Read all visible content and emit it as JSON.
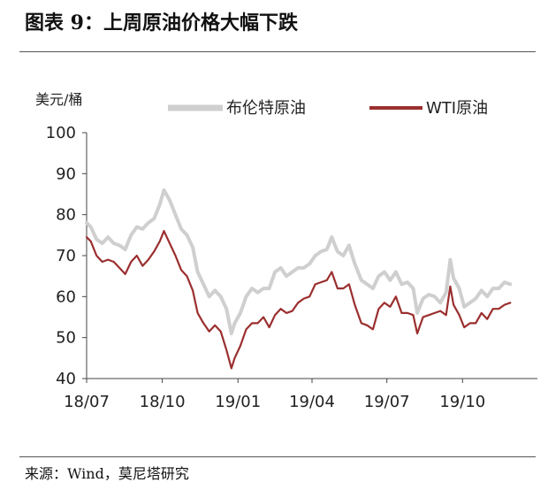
{
  "header": {
    "title": "图表 9：上周原油价格大幅下跌"
  },
  "footer": {
    "source": "来源：Wind，莫尼塔研究"
  },
  "colors": {
    "brent": "#cfcfcf",
    "wti": "#9b2f2f",
    "axis": "#444444"
  },
  "chart_data": {
    "type": "line",
    "title": "",
    "ylabel": "美元/桶",
    "xlabel": "",
    "ylim": [
      40,
      100
    ],
    "yticks": [
      40,
      50,
      60,
      70,
      80,
      90,
      100
    ],
    "xlim": [
      "2018-07-01",
      "2019-12-31"
    ],
    "xticks": [
      {
        "date": "2018-07-01",
        "label": "18/07"
      },
      {
        "date": "2018-10-01",
        "label": "18/10"
      },
      {
        "date": "2019-01-01",
        "label": "19/01"
      },
      {
        "date": "2019-04-01",
        "label": "19/04"
      },
      {
        "date": "2019-07-01",
        "label": "19/07"
      },
      {
        "date": "2019-10-01",
        "label": "19/10"
      }
    ],
    "legend_placement": "top",
    "grid": false,
    "series": [
      {
        "name": "布伦特原油",
        "points": [
          [
            "2018-07-01",
            78
          ],
          [
            "2018-07-06",
            77
          ],
          [
            "2018-07-13",
            74
          ],
          [
            "2018-07-20",
            73
          ],
          [
            "2018-07-27",
            74.5
          ],
          [
            "2018-08-03",
            73
          ],
          [
            "2018-08-10",
            72.5
          ],
          [
            "2018-08-17",
            71.5
          ],
          [
            "2018-08-24",
            75
          ],
          [
            "2018-08-31",
            77
          ],
          [
            "2018-09-07",
            76.5
          ],
          [
            "2018-09-14",
            78
          ],
          [
            "2018-09-21",
            79
          ],
          [
            "2018-09-28",
            82.5
          ],
          [
            "2018-10-03",
            86
          ],
          [
            "2018-10-10",
            83.5
          ],
          [
            "2018-10-17",
            80
          ],
          [
            "2018-10-24",
            76.5
          ],
          [
            "2018-10-31",
            75
          ],
          [
            "2018-11-07",
            72
          ],
          [
            "2018-11-13",
            66
          ],
          [
            "2018-11-20",
            63
          ],
          [
            "2018-11-27",
            60
          ],
          [
            "2018-12-04",
            61.5
          ],
          [
            "2018-12-11",
            60
          ],
          [
            "2018-12-18",
            57
          ],
          [
            "2018-12-24",
            51
          ],
          [
            "2018-12-28",
            53.5
          ],
          [
            "2019-01-04",
            56
          ],
          [
            "2019-01-11",
            60
          ],
          [
            "2019-01-18",
            62
          ],
          [
            "2019-01-25",
            61
          ],
          [
            "2019-02-01",
            62
          ],
          [
            "2019-02-08",
            62
          ],
          [
            "2019-02-15",
            66
          ],
          [
            "2019-02-22",
            67
          ],
          [
            "2019-03-01",
            65
          ],
          [
            "2019-03-08",
            66
          ],
          [
            "2019-03-15",
            67
          ],
          [
            "2019-03-22",
            67
          ],
          [
            "2019-03-29",
            68
          ],
          [
            "2019-04-05",
            70
          ],
          [
            "2019-04-12",
            71
          ],
          [
            "2019-04-19",
            71.5
          ],
          [
            "2019-04-25",
            74.5
          ],
          [
            "2019-05-02",
            71
          ],
          [
            "2019-05-09",
            70
          ],
          [
            "2019-05-16",
            72.5
          ],
          [
            "2019-05-23",
            68
          ],
          [
            "2019-05-31",
            64
          ],
          [
            "2019-06-07",
            63
          ],
          [
            "2019-06-14",
            62
          ],
          [
            "2019-06-21",
            65
          ],
          [
            "2019-06-28",
            66
          ],
          [
            "2019-07-05",
            64
          ],
          [
            "2019-07-12",
            66
          ],
          [
            "2019-07-19",
            63
          ],
          [
            "2019-07-26",
            63.5
          ],
          [
            "2019-08-02",
            62
          ],
          [
            "2019-08-07",
            56
          ],
          [
            "2019-08-14",
            59.5
          ],
          [
            "2019-08-21",
            60.5
          ],
          [
            "2019-08-28",
            60
          ],
          [
            "2019-09-04",
            58.5
          ],
          [
            "2019-09-11",
            61
          ],
          [
            "2019-09-16",
            69
          ],
          [
            "2019-09-20",
            64.5
          ],
          [
            "2019-09-27",
            62
          ],
          [
            "2019-10-03",
            57.5
          ],
          [
            "2019-10-10",
            58.5
          ],
          [
            "2019-10-17",
            59.5
          ],
          [
            "2019-10-24",
            61.5
          ],
          [
            "2019-10-31",
            60
          ],
          [
            "2019-11-07",
            62
          ],
          [
            "2019-11-14",
            62
          ],
          [
            "2019-11-21",
            63.5
          ],
          [
            "2019-11-28",
            63
          ]
        ]
      },
      {
        "name": "WTI原油",
        "points": [
          [
            "2018-07-01",
            74.5
          ],
          [
            "2018-07-06",
            73.5
          ],
          [
            "2018-07-13",
            70
          ],
          [
            "2018-07-20",
            68.5
          ],
          [
            "2018-07-27",
            69
          ],
          [
            "2018-08-03",
            68.5
          ],
          [
            "2018-08-10",
            67
          ],
          [
            "2018-08-17",
            65.5
          ],
          [
            "2018-08-24",
            68.5
          ],
          [
            "2018-08-31",
            70
          ],
          [
            "2018-09-07",
            67.5
          ],
          [
            "2018-09-14",
            69
          ],
          [
            "2018-09-21",
            71
          ],
          [
            "2018-09-28",
            73.5
          ],
          [
            "2018-10-03",
            76
          ],
          [
            "2018-10-10",
            73
          ],
          [
            "2018-10-17",
            70
          ],
          [
            "2018-10-24",
            66.5
          ],
          [
            "2018-10-31",
            65
          ],
          [
            "2018-11-07",
            61.5
          ],
          [
            "2018-11-13",
            56
          ],
          [
            "2018-11-20",
            53.5
          ],
          [
            "2018-11-27",
            51.5
          ],
          [
            "2018-12-04",
            53
          ],
          [
            "2018-12-11",
            51.5
          ],
          [
            "2018-12-18",
            47
          ],
          [
            "2018-12-24",
            42.5
          ],
          [
            "2018-12-28",
            45
          ],
          [
            "2019-01-04",
            48
          ],
          [
            "2019-01-11",
            52
          ],
          [
            "2019-01-18",
            53.5
          ],
          [
            "2019-01-25",
            53.5
          ],
          [
            "2019-02-01",
            55
          ],
          [
            "2019-02-08",
            52.5
          ],
          [
            "2019-02-15",
            55.5
          ],
          [
            "2019-02-22",
            57
          ],
          [
            "2019-03-01",
            56
          ],
          [
            "2019-03-08",
            56.5
          ],
          [
            "2019-03-15",
            58.5
          ],
          [
            "2019-03-22",
            59.5
          ],
          [
            "2019-03-29",
            60
          ],
          [
            "2019-04-05",
            63
          ],
          [
            "2019-04-12",
            63.5
          ],
          [
            "2019-04-19",
            64
          ],
          [
            "2019-04-25",
            66
          ],
          [
            "2019-05-02",
            62
          ],
          [
            "2019-05-09",
            62
          ],
          [
            "2019-05-16",
            63
          ],
          [
            "2019-05-23",
            58
          ],
          [
            "2019-05-31",
            53.5
          ],
          [
            "2019-06-07",
            53
          ],
          [
            "2019-06-14",
            52
          ],
          [
            "2019-06-21",
            57
          ],
          [
            "2019-06-28",
            58.5
          ],
          [
            "2019-07-05",
            57.5
          ],
          [
            "2019-07-12",
            60
          ],
          [
            "2019-07-19",
            56
          ],
          [
            "2019-07-26",
            56
          ],
          [
            "2019-08-02",
            55.5
          ],
          [
            "2019-08-07",
            51
          ],
          [
            "2019-08-14",
            55
          ],
          [
            "2019-08-21",
            55.5
          ],
          [
            "2019-08-28",
            56
          ],
          [
            "2019-09-04",
            56.5
          ],
          [
            "2019-09-11",
            55.5
          ],
          [
            "2019-09-16",
            62.5
          ],
          [
            "2019-09-20",
            58
          ],
          [
            "2019-09-27",
            55.5
          ],
          [
            "2019-10-03",
            52.5
          ],
          [
            "2019-10-10",
            53.5
          ],
          [
            "2019-10-17",
            53.5
          ],
          [
            "2019-10-24",
            56
          ],
          [
            "2019-10-31",
            54.5
          ],
          [
            "2019-11-07",
            57
          ],
          [
            "2019-11-14",
            57
          ],
          [
            "2019-11-21",
            58
          ],
          [
            "2019-11-28",
            58.5
          ]
        ]
      }
    ]
  }
}
